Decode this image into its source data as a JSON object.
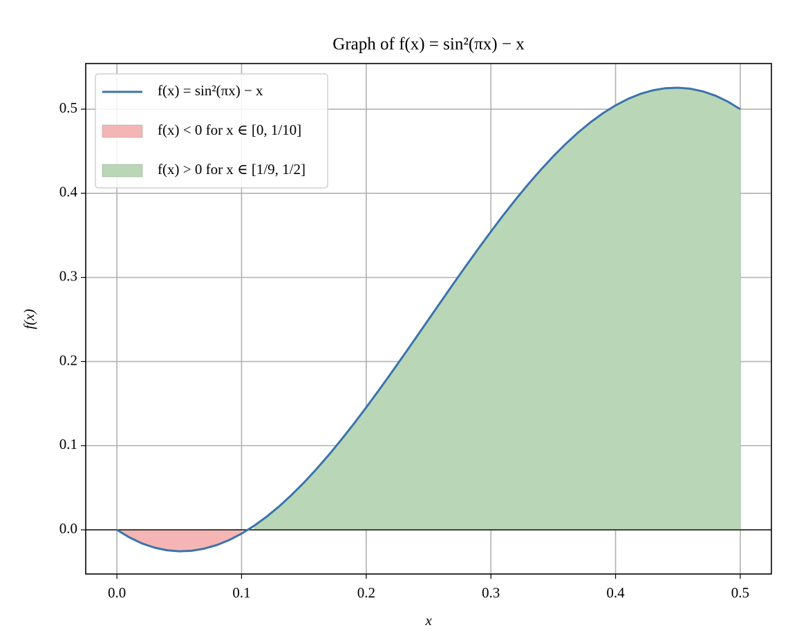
{
  "chart_data": {
    "type": "line",
    "title": "Graph of f(x) = sin²(πx) − x",
    "xlabel": "x",
    "ylabel": "f(x)",
    "xlim": [
      -0.025,
      0.525
    ],
    "ylim": [
      -0.0525,
      0.5542
    ],
    "xticks": [
      {
        "value": 0,
        "label": "0.0"
      },
      0.1,
      0.2,
      0.3,
      0.4,
      0.5
    ],
    "yticks": [
      {
        "value": 0,
        "label": "0.0"
      },
      0.1,
      0.2,
      0.3,
      0.4,
      0.5
    ],
    "grid": true,
    "zero_line": true,
    "legend": "upper-left",
    "series": [
      {
        "name": "f(x) = sin²(πx) − x",
        "kind": "line",
        "color": "#3b73ab",
        "x": [
          0,
          0.01,
          0.02,
          0.03,
          0.04,
          0.05,
          0.06,
          0.07,
          0.08,
          0.09,
          0.1,
          0.11,
          0.12,
          0.13,
          0.14,
          0.15,
          0.16,
          0.17,
          0.18,
          0.19,
          0.2,
          0.21,
          0.22,
          0.23,
          0.24,
          0.25,
          0.26,
          0.27,
          0.28,
          0.29,
          0.3,
          0.31,
          0.32,
          0.33,
          0.34,
          0.35,
          0.36,
          0.37,
          0.38,
          0.39,
          0.4,
          0.41,
          0.42,
          0.43,
          0.44,
          0.45,
          0.46,
          0.47,
          0.48,
          0.49,
          0.5
        ],
        "values": [
          0,
          -0.009,
          -0.0161,
          -0.0211,
          -0.0243,
          -0.0255,
          -0.0249,
          -0.0224,
          -0.0182,
          -0.0122,
          -0.0045,
          0.0047,
          0.0155,
          0.0277,
          0.0413,
          0.0561,
          0.0721,
          0.0891,
          0.1071,
          0.1259,
          0.1455,
          0.1657,
          0.1863,
          0.2073,
          0.2286,
          0.25,
          0.2714,
          0.2927,
          0.3137,
          0.3343,
          0.3545,
          0.3741,
          0.3929,
          0.4109,
          0.4279,
          0.4439,
          0.4587,
          0.4723,
          0.4845,
          0.4953,
          0.5045,
          0.5122,
          0.5182,
          0.5224,
          0.5249,
          0.5255,
          0.5243,
          0.5211,
          0.5161,
          0.509,
          0.5
        ]
      },
      {
        "name": "f(x) < 0 for x ∈ [0, 1/10]",
        "kind": "area",
        "color": "#f4b5b4",
        "x": [
          0,
          0.01,
          0.02,
          0.03,
          0.04,
          0.05,
          0.06,
          0.07,
          0.08,
          0.09,
          0.1
        ],
        "values": [
          0,
          -0.009,
          -0.0161,
          -0.0211,
          -0.0243,
          -0.0255,
          -0.0249,
          -0.0224,
          -0.0182,
          -0.0122,
          -0.0045
        ]
      },
      {
        "name": "f(x) > 0 for x ∈ [1/9, 1/2]",
        "kind": "area",
        "color": "#b9d7b6",
        "x": [
          0.11,
          0.12,
          0.13,
          0.14,
          0.15,
          0.16,
          0.17,
          0.18,
          0.19,
          0.2,
          0.21,
          0.22,
          0.23,
          0.24,
          0.25,
          0.26,
          0.27,
          0.28,
          0.29,
          0.3,
          0.31,
          0.32,
          0.33,
          0.34,
          0.35,
          0.36,
          0.37,
          0.38,
          0.39,
          0.4,
          0.41,
          0.42,
          0.43,
          0.44,
          0.45,
          0.46,
          0.47,
          0.48,
          0.49,
          0.5
        ],
        "values": [
          0.0047,
          0.0155,
          0.0277,
          0.0413,
          0.0561,
          0.0721,
          0.0891,
          0.1071,
          0.1259,
          0.1455,
          0.1657,
          0.1863,
          0.2073,
          0.2286,
          0.25,
          0.2714,
          0.2927,
          0.3137,
          0.3343,
          0.3545,
          0.3741,
          0.3929,
          0.4109,
          0.4279,
          0.4439,
          0.4587,
          0.4723,
          0.4845,
          0.4953,
          0.5045,
          0.5122,
          0.5182,
          0.5224,
          0.5249,
          0.5255,
          0.5243,
          0.5211,
          0.5161,
          0.509,
          0.5
        ]
      }
    ]
  }
}
